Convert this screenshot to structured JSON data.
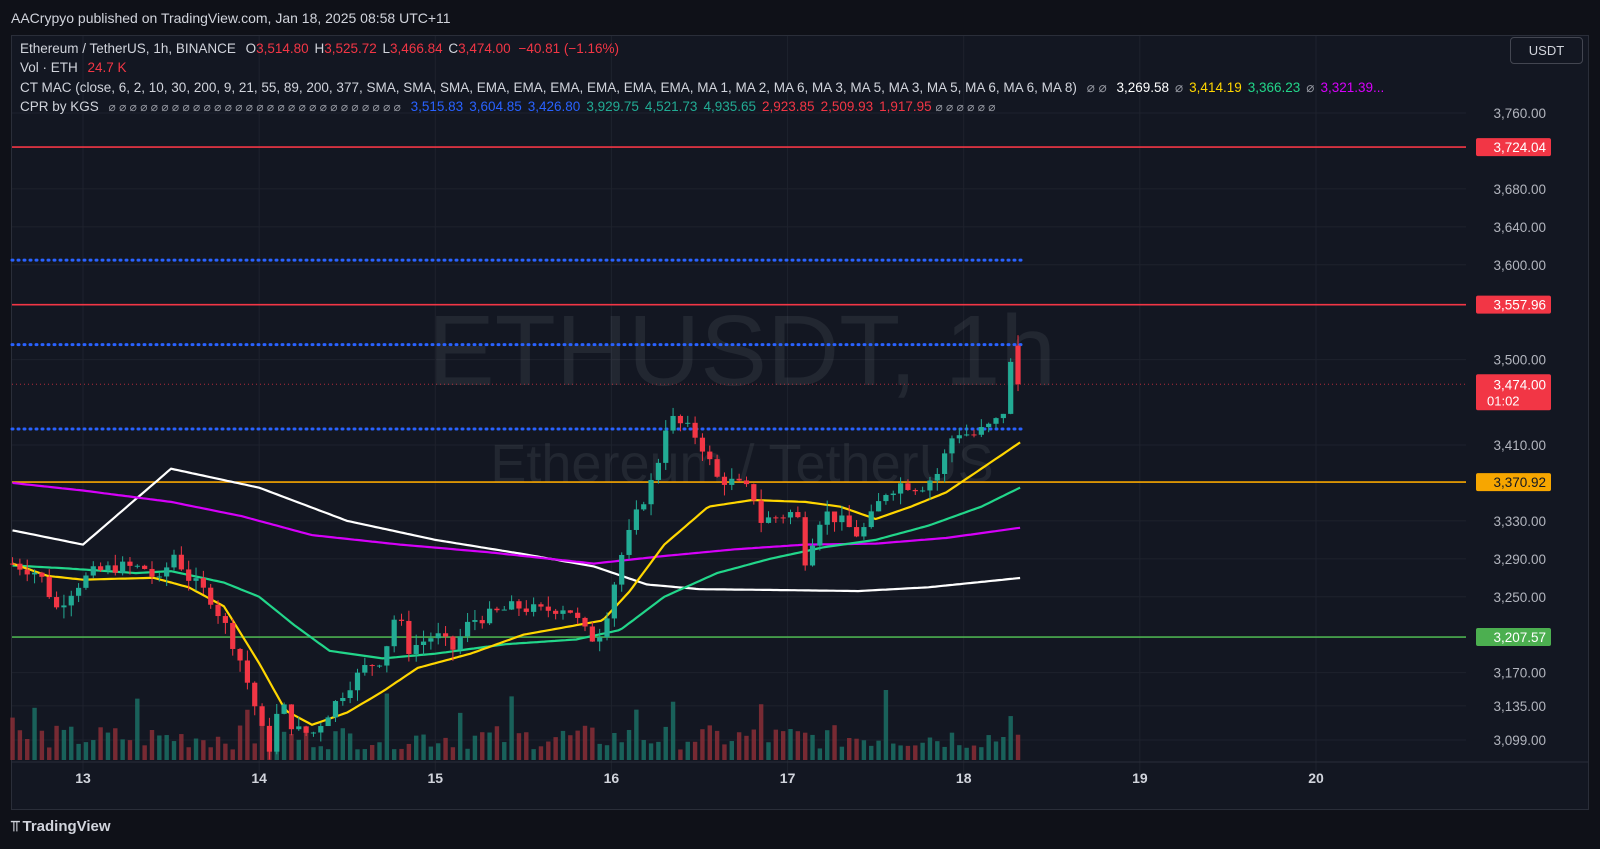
{
  "header": {
    "publisher": "AACrypyo published on TradingView.com, Jan 18, 2025 08:58 UTC+11"
  },
  "currency_button": "USDT",
  "legend": {
    "symbol": "Ethereum / TetherUS, 1h, BINANCE",
    "o_label": "O",
    "o": "3,514.80",
    "h_label": "H",
    "h": "3,525.72",
    "l_label": "L",
    "l": "3,466.84",
    "c_label": "C",
    "c": "3,474.00",
    "change": "−40.81 (−1.16%)",
    "vol_label": "Vol · ETH",
    "vol": "24.7 K",
    "ct_mac_label": "CT MAC (close, 6, 2, 10, 30, 200, 9, 21, 55, 89, 200, 377, SMA, SMA, SMA, EMA, EMA, EMA, EMA, EMA, EMA, MA 1, MA 2, MA 6, MA 3, MA 5, MA 3, MA 5, MA 6, MA 6, MA 8)",
    "ct_mac_empty": "⌀ ⌀",
    "ct_mac_values": [
      {
        "v": "3,269.58",
        "color": "#ffffff"
      },
      {
        "v": "⌀",
        "color": "#9598a1"
      },
      {
        "v": "3,414.19",
        "color": "#ffd600"
      },
      {
        "v": "3,366.23",
        "color": "#22d68a"
      },
      {
        "v": "⌀",
        "color": "#9598a1"
      },
      {
        "v": "3,321.39...",
        "color": "#d500f9"
      }
    ],
    "cpr_label": "CPR by KGS",
    "cpr_empty": "⌀ ⌀ ⌀ ⌀ ⌀ ⌀ ⌀ ⌀ ⌀ ⌀ ⌀ ⌀ ⌀ ⌀ ⌀ ⌀ ⌀ ⌀ ⌀ ⌀ ⌀ ⌀ ⌀ ⌀ ⌀ ⌀ ⌀ ⌀",
    "cpr_values": [
      {
        "v": "3,515.83",
        "color": "#2962ff"
      },
      {
        "v": "3,604.85",
        "color": "#2962ff"
      },
      {
        "v": "3,426.80",
        "color": "#2962ff"
      },
      {
        "v": "3,929.75",
        "color": "#22ab94"
      },
      {
        "v": "4,521.73",
        "color": "#22ab94"
      },
      {
        "v": "4,935.65",
        "color": "#22ab94"
      },
      {
        "v": "2,923.85",
        "color": "#f23645"
      },
      {
        "v": "2,509.93",
        "color": "#f23645"
      },
      {
        "v": "1,917.95",
        "color": "#f23645"
      }
    ],
    "cpr_tail": "⌀ ⌀ ⌀ ⌀ ⌀ ⌀"
  },
  "watermark": {
    "ticker": "ETHUSDT, 1h",
    "name": "Ethereum / TetherUS"
  },
  "price_axis": {
    "ticks": [
      "3,760.00",
      "3,680.00",
      "3,640.00",
      "3,600.00",
      "3,500.00",
      "3,410.00",
      "3,330.00",
      "3,290.00",
      "3,250.00",
      "3,170.00",
      "3,135.00",
      "3,099.00"
    ],
    "tick_values": [
      3760,
      3680,
      3640,
      3600,
      3500,
      3410,
      3330,
      3290,
      3250,
      3170,
      3135,
      3099
    ],
    "badges": [
      {
        "label": "3,724.04",
        "value": 3724.04,
        "color": "#f23645"
      },
      {
        "label": "3,557.96",
        "value": 3557.96,
        "color": "#f23645"
      },
      {
        "label": "3,370.92",
        "value": 3370.92,
        "color": "#f7a600"
      },
      {
        "label": "3,207.57",
        "value": 3207.57,
        "color": "#4caf50"
      }
    ],
    "current": {
      "label": "3,474.00",
      "countdown": "01:02",
      "value": 3474.0,
      "color": "#f23645"
    }
  },
  "time_axis": [
    "13",
    "14",
    "15",
    "16",
    "17",
    "18",
    "19",
    "20"
  ],
  "footer": {
    "brand": "TradingView"
  },
  "chart_data": {
    "type": "candlestick",
    "title": "Ethereum / TetherUS, 1h, BINANCE",
    "ylim": [
      3060,
      3790
    ],
    "horizontal_levels": [
      {
        "value": 3724.04,
        "style": "solid",
        "color": "#f23645"
      },
      {
        "value": 3557.96,
        "style": "solid",
        "color": "#f23645"
      },
      {
        "value": 3370.92,
        "style": "solid",
        "color": "#f7a600"
      },
      {
        "value": 3207.57,
        "style": "solid",
        "color": "#4caf50"
      },
      {
        "value": 3604.85,
        "style": "dotted",
        "color": "#2962ff"
      },
      {
        "value": 3515.83,
        "style": "dotted",
        "color": "#2962ff"
      },
      {
        "value": 3426.8,
        "style": "dotted",
        "color": "#2962ff"
      }
    ],
    "x_range": [
      12.6,
      21.2
    ],
    "candles_start": 12.6,
    "candles_end": 18.33,
    "candles_close_anchors": [
      [
        12.6,
        3285
      ],
      [
        12.75,
        3275
      ],
      [
        12.85,
        3238
      ],
      [
        12.95,
        3260
      ],
      [
        13.05,
        3275
      ],
      [
        13.2,
        3282
      ],
      [
        13.35,
        3280
      ],
      [
        13.45,
        3262
      ],
      [
        13.5,
        3300
      ],
      [
        13.6,
        3270
      ],
      [
        13.72,
        3250
      ],
      [
        13.82,
        3215
      ],
      [
        13.9,
        3180
      ],
      [
        14.0,
        3120
      ],
      [
        14.05,
        3085
      ],
      [
        14.12,
        3140
      ],
      [
        14.2,
        3110
      ],
      [
        14.3,
        3105
      ],
      [
        14.4,
        3130
      ],
      [
        14.5,
        3155
      ],
      [
        14.6,
        3175
      ],
      [
        14.7,
        3185
      ],
      [
        14.78,
        3235
      ],
      [
        14.85,
        3195
      ],
      [
        15.0,
        3210
      ],
      [
        15.1,
        3195
      ],
      [
        15.2,
        3225
      ],
      [
        15.3,
        3230
      ],
      [
        15.45,
        3240
      ],
      [
        15.6,
        3235
      ],
      [
        15.75,
        3240
      ],
      [
        15.88,
        3205
      ],
      [
        15.95,
        3215
      ],
      [
        16.05,
        3290
      ],
      [
        16.15,
        3340
      ],
      [
        16.25,
        3380
      ],
      [
        16.32,
        3440
      ],
      [
        16.45,
        3425
      ],
      [
        16.5,
        3415
      ],
      [
        16.6,
        3375
      ],
      [
        16.7,
        3370
      ],
      [
        16.8,
        3360
      ],
      [
        16.85,
        3330
      ],
      [
        16.95,
        3335
      ],
      [
        17.05,
        3340
      ],
      [
        17.1,
        3290
      ],
      [
        17.2,
        3340
      ],
      [
        17.3,
        3330
      ],
      [
        17.4,
        3315
      ],
      [
        17.45,
        3325
      ],
      [
        17.55,
        3360
      ],
      [
        17.65,
        3370
      ],
      [
        17.75,
        3365
      ],
      [
        17.85,
        3380
      ],
      [
        17.95,
        3425
      ],
      [
        18.05,
        3420
      ],
      [
        18.15,
        3430
      ],
      [
        18.22,
        3440
      ],
      [
        18.28,
        3510
      ],
      [
        18.33,
        3474
      ]
    ],
    "series": [
      {
        "name": "",
        "color": "#ffffff",
        "points": [
          [
            12.6,
            3320
          ],
          [
            13.0,
            3305
          ],
          [
            13.5,
            3385
          ],
          [
            14.0,
            3365
          ],
          [
            14.5,
            3330
          ],
          [
            15.0,
            3310
          ],
          [
            15.5,
            3295
          ],
          [
            15.9,
            3282
          ],
          [
            16.2,
            3263
          ],
          [
            16.5,
            3258
          ],
          [
            17.0,
            3257
          ],
          [
            17.4,
            3256
          ],
          [
            17.8,
            3260
          ],
          [
            18.33,
            3270
          ]
        ]
      },
      {
        "name": "",
        "color": "#d500f9",
        "points": [
          [
            12.6,
            3370
          ],
          [
            13.0,
            3362
          ],
          [
            13.5,
            3350
          ],
          [
            13.9,
            3335
          ],
          [
            14.3,
            3315
          ],
          [
            14.8,
            3305
          ],
          [
            15.3,
            3297
          ],
          [
            15.9,
            3285
          ],
          [
            16.3,
            3293
          ],
          [
            16.7,
            3300
          ],
          [
            17.1,
            3305
          ],
          [
            17.5,
            3306
          ],
          [
            17.9,
            3312
          ],
          [
            18.33,
            3323
          ]
        ]
      },
      {
        "name": "",
        "color": "#22d68a",
        "points": [
          [
            12.6,
            3283
          ],
          [
            12.9,
            3280
          ],
          [
            13.3,
            3275
          ],
          [
            13.5,
            3277
          ],
          [
            13.8,
            3265
          ],
          [
            14.0,
            3250
          ],
          [
            14.2,
            3220
          ],
          [
            14.4,
            3193
          ],
          [
            14.7,
            3185
          ],
          [
            15.0,
            3190
          ],
          [
            15.4,
            3200
          ],
          [
            15.8,
            3205
          ],
          [
            16.05,
            3215
          ],
          [
            16.3,
            3250
          ],
          [
            16.6,
            3275
          ],
          [
            16.9,
            3290
          ],
          [
            17.2,
            3302
          ],
          [
            17.5,
            3310
          ],
          [
            17.8,
            3325
          ],
          [
            18.1,
            3345
          ],
          [
            18.33,
            3366
          ]
        ]
      },
      {
        "name": "",
        "color": "#ffd600",
        "points": [
          [
            12.6,
            3285
          ],
          [
            12.8,
            3272
          ],
          [
            13.0,
            3268
          ],
          [
            13.4,
            3270
          ],
          [
            13.6,
            3260
          ],
          [
            13.8,
            3240
          ],
          [
            14.0,
            3180
          ],
          [
            14.15,
            3130
          ],
          [
            14.3,
            3115
          ],
          [
            14.5,
            3128
          ],
          [
            14.7,
            3150
          ],
          [
            14.9,
            3175
          ],
          [
            15.2,
            3190
          ],
          [
            15.5,
            3210
          ],
          [
            15.8,
            3220
          ],
          [
            15.95,
            3225
          ],
          [
            16.1,
            3255
          ],
          [
            16.3,
            3305
          ],
          [
            16.55,
            3345
          ],
          [
            16.8,
            3352
          ],
          [
            17.1,
            3350
          ],
          [
            17.3,
            3345
          ],
          [
            17.5,
            3332
          ],
          [
            17.7,
            3345
          ],
          [
            17.9,
            3360
          ],
          [
            18.1,
            3385
          ],
          [
            18.33,
            3414
          ]
        ]
      }
    ],
    "volume_range": [
      0,
      1
    ]
  }
}
